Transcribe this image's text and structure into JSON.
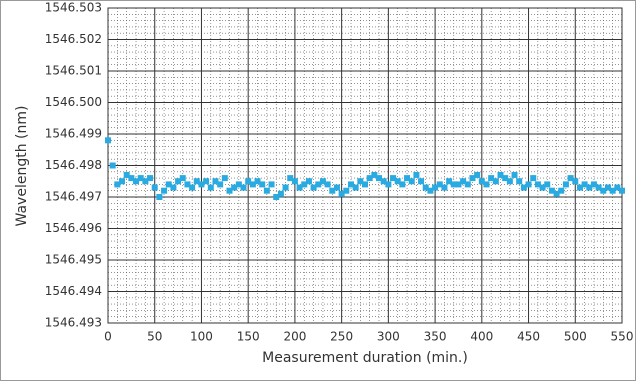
{
  "chart_data": {
    "type": "line",
    "xlabel": "Measurement duration (min.)",
    "ylabel": "Wavelength (nm)",
    "x": [
      0,
      5,
      10,
      15,
      20,
      25,
      30,
      35,
      40,
      45,
      50,
      55,
      60,
      65,
      70,
      75,
      80,
      85,
      90,
      95,
      100,
      105,
      110,
      115,
      120,
      125,
      130,
      135,
      140,
      145,
      150,
      155,
      160,
      165,
      170,
      175,
      180,
      185,
      190,
      195,
      200,
      205,
      210,
      215,
      220,
      225,
      230,
      235,
      240,
      245,
      250,
      255,
      260,
      265,
      270,
      275,
      280,
      285,
      290,
      295,
      300,
      305,
      310,
      315,
      320,
      325,
      330,
      335,
      340,
      345,
      350,
      355,
      360,
      365,
      370,
      375,
      380,
      385,
      390,
      395,
      400,
      405,
      410,
      415,
      420,
      425,
      430,
      435,
      440,
      445,
      450,
      455,
      460,
      465,
      470,
      475,
      480,
      485,
      490,
      495,
      500,
      505,
      510,
      515,
      520,
      525,
      530,
      535,
      540,
      545,
      550
    ],
    "series": [
      {
        "color": "#29abe2",
        "values": [
          1546.4988,
          1546.498,
          1546.4974,
          1546.4975,
          1546.4977,
          1546.4976,
          1546.4975,
          1546.4976,
          1546.4975,
          1546.4976,
          1546.4973,
          1546.497,
          1546.4972,
          1546.4974,
          1546.4973,
          1546.4975,
          1546.4976,
          1546.4974,
          1546.4973,
          1546.4975,
          1546.4974,
          1546.4975,
          1546.4973,
          1546.4975,
          1546.4974,
          1546.4976,
          1546.4972,
          1546.4973,
          1546.4974,
          1546.4973,
          1546.4975,
          1546.4974,
          1546.4975,
          1546.4974,
          1546.4972,
          1546.4974,
          1546.497,
          1546.4971,
          1546.4973,
          1546.4976,
          1546.4975,
          1546.4973,
          1546.4974,
          1546.4975,
          1546.4973,
          1546.4974,
          1546.4975,
          1546.4974,
          1546.4972,
          1546.4973,
          1546.4971,
          1546.4972,
          1546.4974,
          1546.4973,
          1546.4975,
          1546.4974,
          1546.4976,
          1546.4977,
          1546.4976,
          1546.4975,
          1546.4974,
          1546.4976,
          1546.4975,
          1546.4974,
          1546.4976,
          1546.4975,
          1546.4977,
          1546.4975,
          1546.4973,
          1546.4972,
          1546.4973,
          1546.4974,
          1546.4973,
          1546.4975,
          1546.4974,
          1546.4974,
          1546.4975,
          1546.4974,
          1546.4976,
          1546.4977,
          1546.4975,
          1546.4974,
          1546.4976,
          1546.4975,
          1546.4977,
          1546.4976,
          1546.4975,
          1546.4977,
          1546.4975,
          1546.4973,
          1546.4974,
          1546.4976,
          1546.4974,
          1546.4973,
          1546.4974,
          1546.4972,
          1546.4971,
          1546.4972,
          1546.4974,
          1546.4976,
          1546.4975,
          1546.4973,
          1546.4974,
          1546.4973,
          1546.4974,
          1546.4973,
          1546.4972,
          1546.4973,
          1546.4972,
          1546.4973,
          1546.4972
        ]
      }
    ],
    "xlim": [
      0,
      550
    ],
    "xticks": [
      0,
      50,
      100,
      150,
      200,
      250,
      300,
      350,
      400,
      450,
      500,
      550
    ],
    "ylim": [
      1546.493,
      1546.503
    ],
    "yticks": [
      1546.493,
      1546.494,
      1546.495,
      1546.496,
      1546.497,
      1546.498,
      1546.499,
      {
        "value": 1546.5,
        "label": "1546.500"
      },
      1546.501,
      1546.502,
      1546.503
    ],
    "grid": true,
    "minor_divisions": 5
  }
}
